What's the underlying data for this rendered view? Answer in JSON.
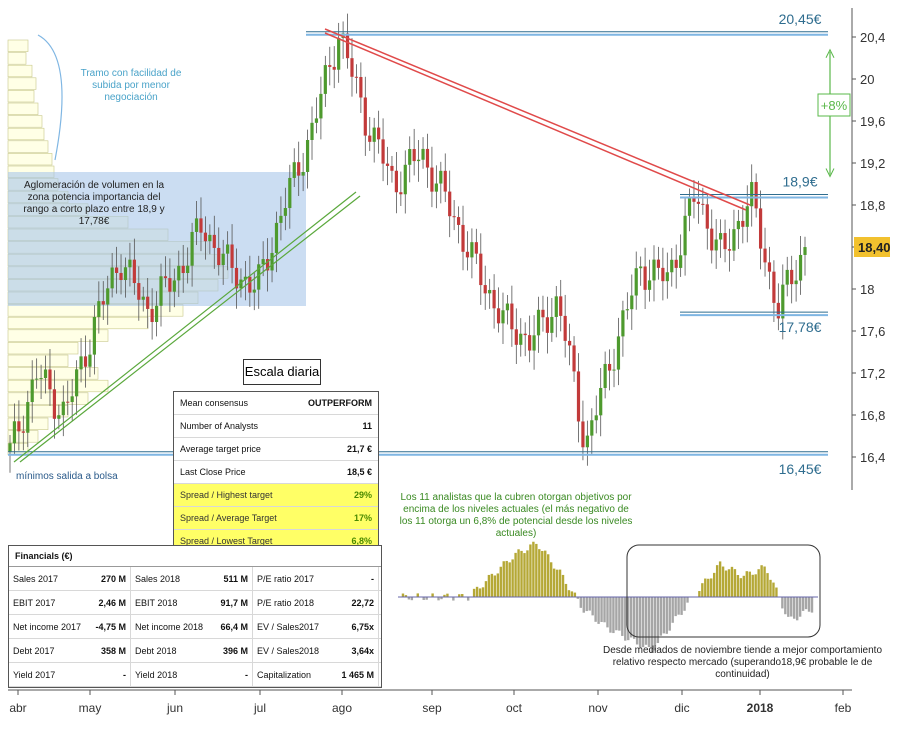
{
  "chart_data": {
    "type": "candlestick",
    "y_axis": {
      "ticks": [
        "20,4",
        "20",
        "19,6",
        "19,2",
        "18,8",
        "18,4",
        "18",
        "17,6",
        "17,2",
        "16,8",
        "16,4"
      ],
      "range": [
        16.3,
        20.7
      ]
    },
    "x_axis": {
      "ticks": [
        "abr",
        "may",
        "jun",
        "jul",
        "ago",
        "sep",
        "oct",
        "nov",
        "dic",
        "2018",
        "feb"
      ]
    },
    "last_price_label": "18,40",
    "last_price": 18.4,
    "levels": [
      {
        "value": 20.45,
        "label": "20,45€"
      },
      {
        "value": 18.9,
        "label": "18,9€"
      },
      {
        "value": 17.78,
        "label": "17,78€"
      },
      {
        "value": 16.45,
        "label": "16,45€"
      }
    ],
    "upside_label": "+8%",
    "price_path": [
      [
        "abr",
        16.45
      ],
      [
        "abr",
        17.2
      ],
      [
        "abr",
        16.8
      ],
      [
        "may",
        17.6
      ],
      [
        "may",
        18.3
      ],
      [
        "may",
        17.8
      ],
      [
        "jun",
        18.1
      ],
      [
        "jun",
        18.6
      ],
      [
        "jun",
        18.2
      ],
      [
        "jul",
        18.0
      ],
      [
        "jul",
        18.8
      ],
      [
        "jul",
        19.5
      ],
      [
        "ago",
        20.45
      ],
      [
        "ago",
        19.6
      ],
      [
        "ago",
        19.0
      ],
      [
        "sep",
        19.3
      ],
      [
        "sep",
        18.8
      ],
      [
        "sep",
        18.2
      ],
      [
        "oct",
        17.7
      ],
      [
        "oct",
        17.5
      ],
      [
        "oct",
        17.9
      ],
      [
        "nov",
        16.5
      ],
      [
        "nov",
        17.4
      ],
      [
        "nov",
        18.2
      ],
      [
        "dic",
        18.1
      ],
      [
        "dic",
        18.9
      ],
      [
        "dic",
        18.3
      ],
      [
        "2018",
        18.9
      ],
      [
        "2018",
        17.8
      ],
      [
        "2018",
        18.4
      ]
    ],
    "relative_strength_path": [
      [
        "abr",
        0
      ],
      [
        "may",
        0
      ],
      [
        "jun",
        0
      ],
      [
        "jul",
        0
      ],
      [
        "ago",
        0.35
      ],
      [
        "ago",
        0.7
      ],
      [
        "sep",
        0.9
      ],
      [
        "sep",
        0.4
      ],
      [
        "sep",
        -0.2
      ],
      [
        "oct",
        -0.5
      ],
      [
        "oct",
        -0.7
      ],
      [
        "nov",
        -0.9
      ],
      [
        "nov",
        -0.4
      ],
      [
        "dic",
        0.1
      ],
      [
        "dic",
        0.55
      ],
      [
        "dic",
        0.35
      ],
      [
        "2018",
        0.5
      ],
      [
        "2018",
        -0.4
      ],
      [
        "2018",
        -0.2
      ]
    ]
  },
  "annotations": {
    "tramo": "Tramo con facilidad de subida por menor negociación",
    "aglomeracion": "Aglomeración de volumen en la zona potencia importancia del rango a corto plazo entre 18,9 y 17,78€",
    "minimos": "mínimos salida a bolsa",
    "analistas": "Los 11 analistas que la cubren otorgan objetivos por encima de los niveles actuales (el más negativo de los 11 otorga un 6,8% de potencial desde los niveles actuales)",
    "mediados": "Desde mediados de noviembre tiende a mejor comportamiento relativo respecto mercado (superando18,9€ probable le de continuidad)"
  },
  "scale_label": "Escala diaria",
  "consensus": [
    {
      "label": "Mean consensus",
      "value": "OUTPERFORM",
      "highlight": false
    },
    {
      "label": "Number of Analysts",
      "value": "11",
      "highlight": false
    },
    {
      "label": "Average target price",
      "value": "21,7 €",
      "highlight": false
    },
    {
      "label": "Last Close Price",
      "value": "18,5 €",
      "highlight": false
    },
    {
      "label": "Spread / Highest target",
      "value": "29%",
      "highlight": true
    },
    {
      "label": "Spread / Average Target",
      "value": "17%",
      "highlight": true
    },
    {
      "label": "Spread / Lowest Target",
      "value": "6,8%",
      "highlight": true
    }
  ],
  "financials": {
    "title": "Financials (€)",
    "rows": [
      [
        [
          "Sales 2017",
          "270 M"
        ],
        [
          "Sales 2018",
          "511 M"
        ],
        [
          "P/E ratio 2017",
          "-"
        ]
      ],
      [
        [
          "EBIT 2017",
          "2,46 M"
        ],
        [
          "EBIT 2018",
          "91,7 M"
        ],
        [
          "P/E ratio 2018",
          "22,72"
        ]
      ],
      [
        [
          "Net income 2017",
          "-4,75 M"
        ],
        [
          "Net income 2018",
          "66,4 M"
        ],
        [
          "EV / Sales2017",
          "6,75x"
        ]
      ],
      [
        [
          "Debt 2017",
          "358 M"
        ],
        [
          "Debt 2018",
          "396 M"
        ],
        [
          "EV / Sales2018",
          "3,64x"
        ]
      ],
      [
        [
          "Yield 2017",
          "-"
        ],
        [
          "Yield 2018",
          "-"
        ],
        [
          "Capitalization",
          "1 465 M"
        ]
      ]
    ]
  }
}
